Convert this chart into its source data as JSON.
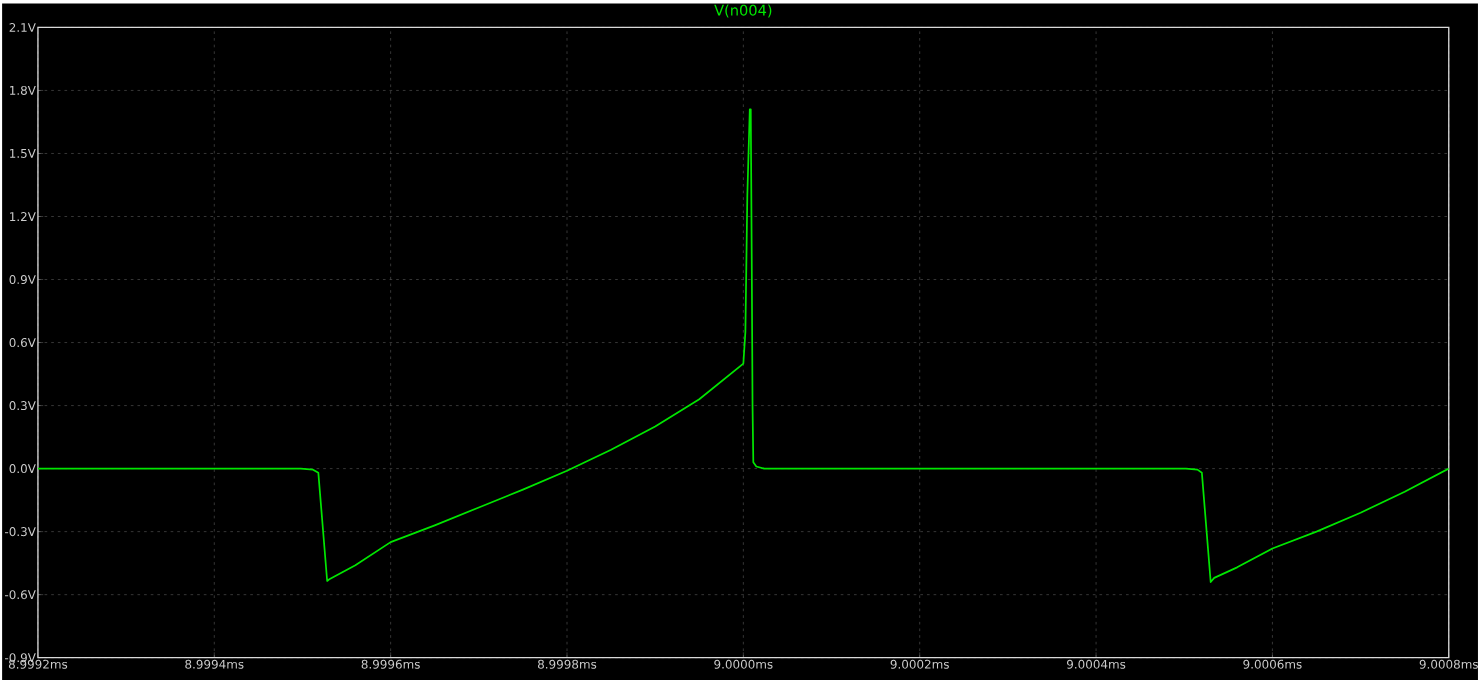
{
  "chart_data": {
    "type": "line",
    "title": "V(n004)",
    "x": [
      8.9992,
      8.999498,
      8.999512,
      8.999518,
      8.999528,
      8.999531,
      8.99956,
      8.9996,
      8.99965,
      8.9997,
      8.99975,
      8.9998,
      8.99985,
      8.9999,
      8.99995,
      9.0,
      9.0000023,
      9.0000045,
      9.0000073,
      9.0000084,
      9.0000095,
      9.0000104,
      9.0000113,
      9.0000147,
      9.0000237,
      9.000502,
      9.000515,
      9.00052,
      9.00053,
      9.000534,
      9.00056,
      9.0006,
      9.00065,
      9.0007,
      9.00075,
      9.0008
    ],
    "series": [
      {
        "color": "#00e600",
        "values": [
          0,
          0,
          -0.005,
          -0.02,
          -0.535,
          -0.525,
          -0.46,
          -0.35,
          -0.27,
          -0.185,
          -0.1,
          -0.01,
          0.09,
          0.2,
          0.33,
          0.5,
          0.65,
          1.3,
          1.71,
          1.71,
          1.0,
          0.3,
          0.03,
          0.01,
          0,
          0,
          -0.005,
          -0.02,
          -0.54,
          -0.52,
          -0.47,
          -0.38,
          -0.3,
          -0.21,
          -0.11,
          0
        ]
      }
    ],
    "xlim": [
      8.9992,
      9.0008
    ],
    "ylim": [
      -0.9,
      2.1
    ],
    "xticks": [
      {
        "value": 8.9992,
        "label": "8.9992ms"
      },
      {
        "value": 8.9994,
        "label": "8.9994ms"
      },
      {
        "value": 8.9996,
        "label": "8.9996ms"
      },
      {
        "value": 8.9998,
        "label": "8.9998ms"
      },
      {
        "value": 9.0,
        "label": "9.0000ms"
      },
      {
        "value": 9.0002,
        "label": "9.0002ms"
      },
      {
        "value": 9.0004,
        "label": "9.0004ms"
      },
      {
        "value": 9.0006,
        "label": "9.0006ms"
      },
      {
        "value": 9.0008,
        "label": "9.0008ms"
      }
    ],
    "yticks": [
      {
        "value": -0.9,
        "label": "-0.9V"
      },
      {
        "value": -0.6,
        "label": "-0.6V"
      },
      {
        "value": -0.3,
        "label": "-0.3V"
      },
      {
        "value": 0.0,
        "label": "0.0V"
      },
      {
        "value": 0.3,
        "label": "0.3V"
      },
      {
        "value": 0.6,
        "label": "0.6V"
      },
      {
        "value": 0.9,
        "label": "0.9V"
      },
      {
        "value": 1.2,
        "label": "1.2V"
      },
      {
        "value": 1.5,
        "label": "1.5V"
      },
      {
        "value": 1.8,
        "label": "1.8V"
      },
      {
        "value": 2.1,
        "label": "2.1V"
      }
    ],
    "grid": true
  }
}
